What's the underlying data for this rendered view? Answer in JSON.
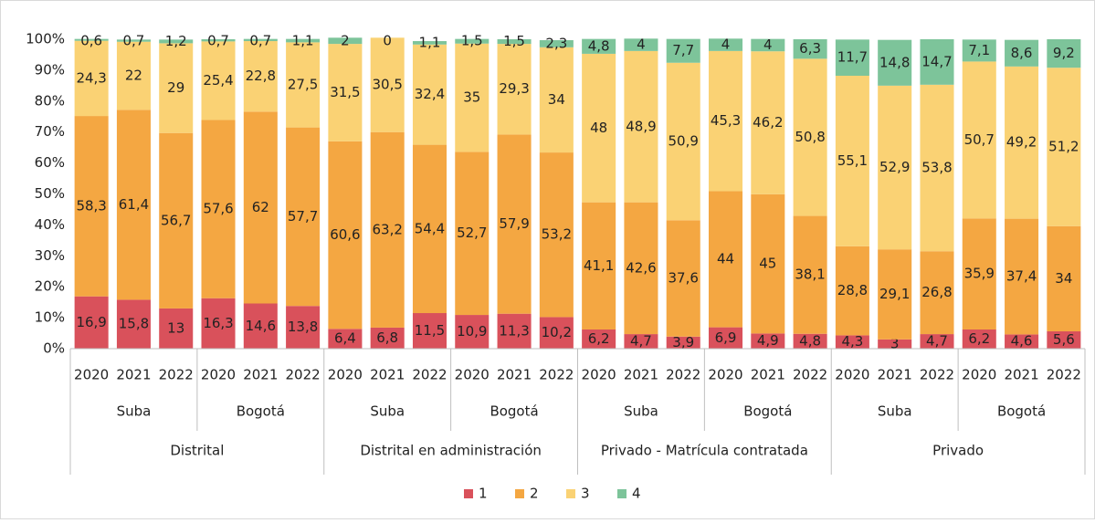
{
  "chart_data": {
    "type": "stacked_bar",
    "categories": [
      "2020",
      "2021",
      "2022",
      "2020",
      "2021",
      "2022",
      "2020",
      "2021",
      "2022",
      "2020",
      "2021",
      "2022",
      "2020",
      "2021",
      "2022",
      "2020",
      "2021",
      "2022",
      "2020",
      "2021",
      "2022",
      "2020",
      "2021",
      "2022"
    ],
    "category_groups": [
      "Suba",
      "Bogotá",
      "Suba",
      "Bogotá",
      "Suba",
      "Bogotá",
      "Suba",
      "Bogotá"
    ],
    "category_supergroups": [
      "Distrital",
      "Distrital en administración",
      "Privado - Matrícula contratada",
      "Privado"
    ],
    "series": [
      {
        "name": "1",
        "color": "#d9515b",
        "values": [
          16.9,
          15.8,
          13,
          16.3,
          14.6,
          13.8,
          6.4,
          6.8,
          11.5,
          10.9,
          11.3,
          10.2,
          6.2,
          4.7,
          3.9,
          6.9,
          4.9,
          4.8,
          4.3,
          3,
          4.7,
          6.2,
          4.6,
          5.6
        ],
        "value_labels": [
          "16,9",
          "15,8",
          "13",
          "16,3",
          "14,6",
          "13,8",
          "6,4",
          "6,8",
          "11,5",
          "10,9",
          "11,3",
          "10,2",
          "6,2",
          "4,7",
          "3,9",
          "6,9",
          "4,9",
          "4,8",
          "4,3",
          "3",
          "4,7",
          "6,2",
          "4,6",
          "5,6"
        ]
      },
      {
        "name": "2",
        "color": "#f4a742",
        "values": [
          58.3,
          61.4,
          56.7,
          57.6,
          62,
          57.7,
          60.6,
          63.2,
          54.4,
          52.7,
          57.9,
          53.2,
          41.1,
          42.6,
          37.6,
          44,
          45,
          38.1,
          28.8,
          29.1,
          26.8,
          35.9,
          37.4,
          34
        ],
        "value_labels": [
          "58,3",
          "61,4",
          "56,7",
          "57,6",
          "62",
          "57,7",
          "60,6",
          "63,2",
          "54,4",
          "52,7",
          "57,9",
          "53,2",
          "41,1",
          "42,6",
          "37,6",
          "44",
          "45",
          "38,1",
          "28,8",
          "29,1",
          "26,8",
          "35,9",
          "37,4",
          "34"
        ]
      },
      {
        "name": "3",
        "color": "#fad274",
        "values": [
          24.3,
          22,
          29,
          25.4,
          22.8,
          27.5,
          31.5,
          30.5,
          32.4,
          35,
          29.3,
          34,
          48,
          48.9,
          50.9,
          45.3,
          46.2,
          50.8,
          55.1,
          52.9,
          53.8,
          50.7,
          49.2,
          51.2
        ],
        "value_labels": [
          "24,3",
          "22",
          "29",
          "25,4",
          "22,8",
          "27,5",
          "31,5",
          "30,5",
          "32,4",
          "35",
          "29,3",
          "34",
          "48",
          "48,9",
          "50,9",
          "45,3",
          "46,2",
          "50,8",
          "55,1",
          "52,9",
          "53,8",
          "50,7",
          "49,2",
          "51,2"
        ]
      },
      {
        "name": "4",
        "color": "#7dc49a",
        "values": [
          0.6,
          0.7,
          1.2,
          0.7,
          0.7,
          1.1,
          2,
          0,
          1.1,
          1.5,
          1.5,
          2.3,
          4.8,
          4,
          7.7,
          4,
          4,
          6.3,
          11.7,
          14.8,
          14.7,
          7.1,
          8.6,
          9.2
        ],
        "value_labels": [
          "0,6",
          "0,7",
          "1,2",
          "0,7",
          "0,7",
          "1,1",
          "2",
          "0",
          "1,1",
          "1,5",
          "1,5",
          "2,3",
          "4,8",
          "4",
          "7,7",
          "4",
          "4",
          "6,3",
          "11,7",
          "14,8",
          "14,7",
          "7,1",
          "8,6",
          "9,2"
        ]
      }
    ],
    "ylim": [
      0,
      100
    ],
    "yticks": [
      {
        "value": 0,
        "label": "0%"
      },
      {
        "value": 10,
        "label": "10%"
      },
      {
        "value": 20,
        "label": "20%"
      },
      {
        "value": 30,
        "label": "30%"
      },
      {
        "value": 40,
        "label": "40%"
      },
      {
        "value": 50,
        "label": "50%"
      },
      {
        "value": 60,
        "label": "60%"
      },
      {
        "value": 70,
        "label": "70%"
      },
      {
        "value": 80,
        "label": "80%"
      },
      {
        "value": 90,
        "label": "90%"
      },
      {
        "value": 100,
        "label": "100%"
      }
    ],
    "grid": false,
    "legend": "bottom"
  }
}
